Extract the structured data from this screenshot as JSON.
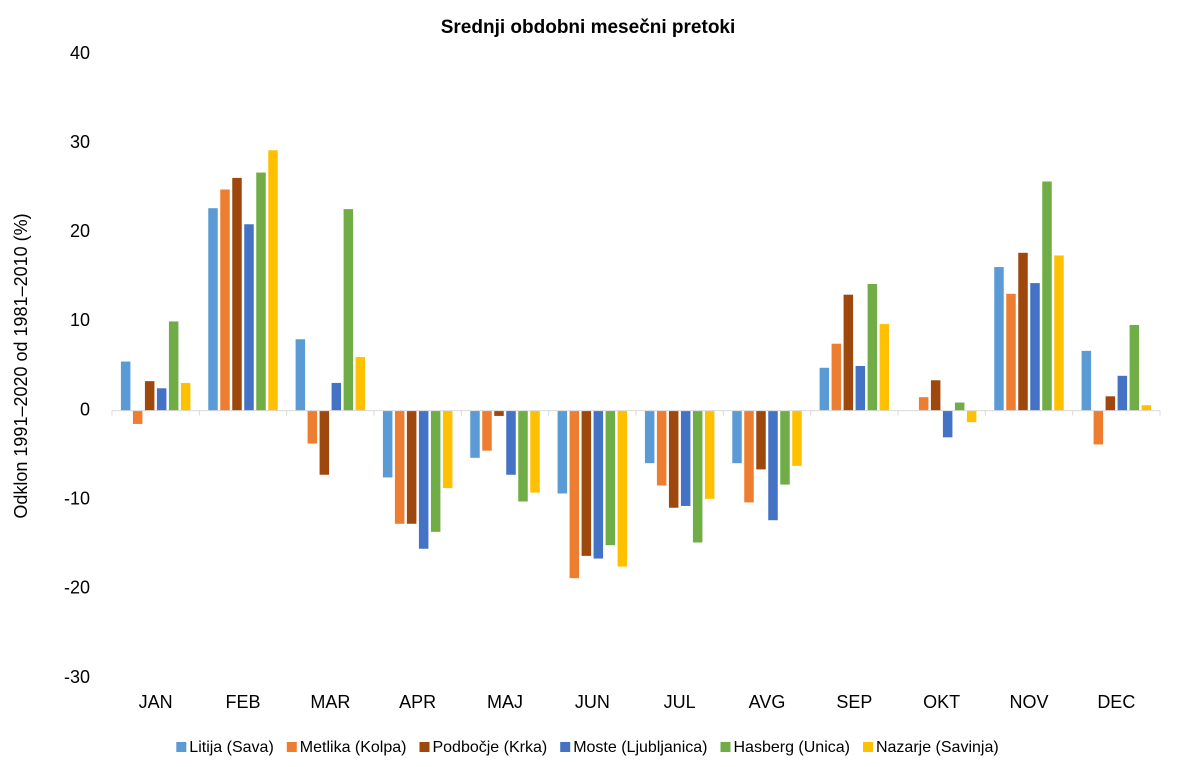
{
  "chart_data": {
    "type": "bar",
    "title": "Srednji obdobni mesečni pretoki",
    "y_label": "Odklon 1991–2020 od 1981–2010 (%)",
    "categories": [
      "JAN",
      "FEB",
      "MAR",
      "APR",
      "MAJ",
      "JUN",
      "JUL",
      "AVG",
      "SEP",
      "OKT",
      "NOV",
      "DEC"
    ],
    "series": [
      {
        "name": "Litija (Sava)",
        "color": "#5b9bd5",
        "values": [
          5.5,
          22.7,
          8.0,
          -7.5,
          -5.3,
          -9.3,
          -5.9,
          -5.9,
          4.8,
          0,
          16.1,
          6.7
        ]
      },
      {
        "name": "Metlika (Kolpa)",
        "color": "#ed7d31",
        "values": [
          -1.5,
          24.8,
          -3.7,
          -12.7,
          -4.5,
          -18.8,
          -8.4,
          -10.3,
          7.5,
          1.5,
          13.1,
          -3.8
        ]
      },
      {
        "name": "Podbočje (Krka)",
        "color": "#9e480e",
        "values": [
          3.3,
          26.1,
          -7.2,
          -12.7,
          -0.6,
          -16.3,
          -10.9,
          -6.6,
          13.0,
          3.4,
          17.7,
          1.6
        ]
      },
      {
        "name": "Moste (Ljubljanica)",
        "color": "#4472c4",
        "values": [
          2.5,
          20.9,
          3.1,
          -15.5,
          -7.2,
          -16.6,
          -10.7,
          -12.3,
          5.0,
          -3.0,
          14.3,
          3.9
        ]
      },
      {
        "name": "Hasberg (Unica)",
        "color": "#70ad47",
        "values": [
          10.0,
          26.7,
          22.6,
          -13.6,
          -10.2,
          -15.1,
          -14.8,
          -8.3,
          14.2,
          0.9,
          25.7,
          9.6
        ]
      },
      {
        "name": "Nazarje (Savinja)",
        "color": "#ffc000",
        "values": [
          3.1,
          29.2,
          6.0,
          -8.7,
          -9.2,
          -17.5,
          -9.9,
          -6.2,
          9.7,
          -1.3,
          17.4,
          0.6
        ]
      }
    ],
    "ylim": [
      -30,
      40
    ],
    "yticks": [
      -30,
      -20,
      -10,
      0,
      10,
      20,
      30,
      40
    ],
    "grid": false
  }
}
